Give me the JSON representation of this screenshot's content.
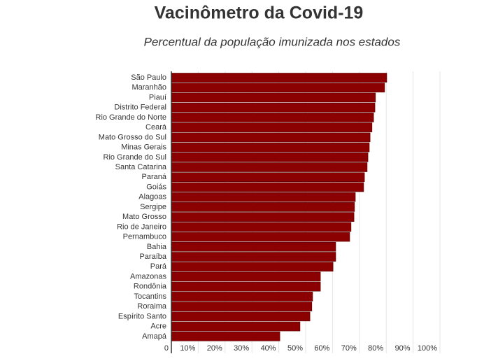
{
  "chart_data": {
    "type": "bar",
    "orientation": "horizontal",
    "title": "Vacinômetro da Covid-19",
    "subtitle": "Percentual da população imunizada nos estados",
    "categories": [
      "São Paulo",
      "Maranhão",
      "Piauí",
      "Distrito Federal",
      "Rio Grande do Norte",
      "Ceará",
      "Mato Grosso do Sul",
      "Minas Gerais",
      "Rio Grande do Sul",
      "Santa Catarina",
      "Paraná",
      "Goiás",
      "Alagoas",
      "Sergipe",
      "Mato Grosso",
      "Rio de Janeiro",
      "Pernambuco",
      "Bahia",
      "Paraíba",
      "Pará",
      "Amazonas",
      "Rondônia",
      "Tocantins",
      "Roraima",
      "Espírito Santo",
      "Acre",
      "Amapá"
    ],
    "values": [
      80.2,
      79.4,
      76.0,
      75.8,
      75.3,
      74.7,
      74.0,
      73.7,
      73.2,
      72.9,
      71.9,
      71.6,
      68.5,
      68.2,
      68.0,
      66.9,
      66.4,
      61.2,
      61.2,
      60.2,
      55.5,
      55.5,
      52.6,
      52.3,
      51.6,
      47.9,
      40.4
    ],
    "color": "#8b0000",
    "xlim": [
      0,
      100
    ],
    "xticks": [
      0,
      {
        "value": 10,
        "label": "10%"
      },
      {
        "value": 20,
        "label": "20%"
      },
      {
        "value": 30,
        "label": "30%"
      },
      {
        "value": 40,
        "label": "40%"
      },
      {
        "value": 50,
        "label": "50%"
      },
      {
        "value": 60,
        "label": "60%"
      },
      {
        "value": 70,
        "label": "70%"
      },
      {
        "value": 80,
        "label": "80%"
      },
      {
        "value": 90,
        "label": "90%"
      },
      {
        "value": 100,
        "label": "100%"
      }
    ],
    "grid": true
  }
}
